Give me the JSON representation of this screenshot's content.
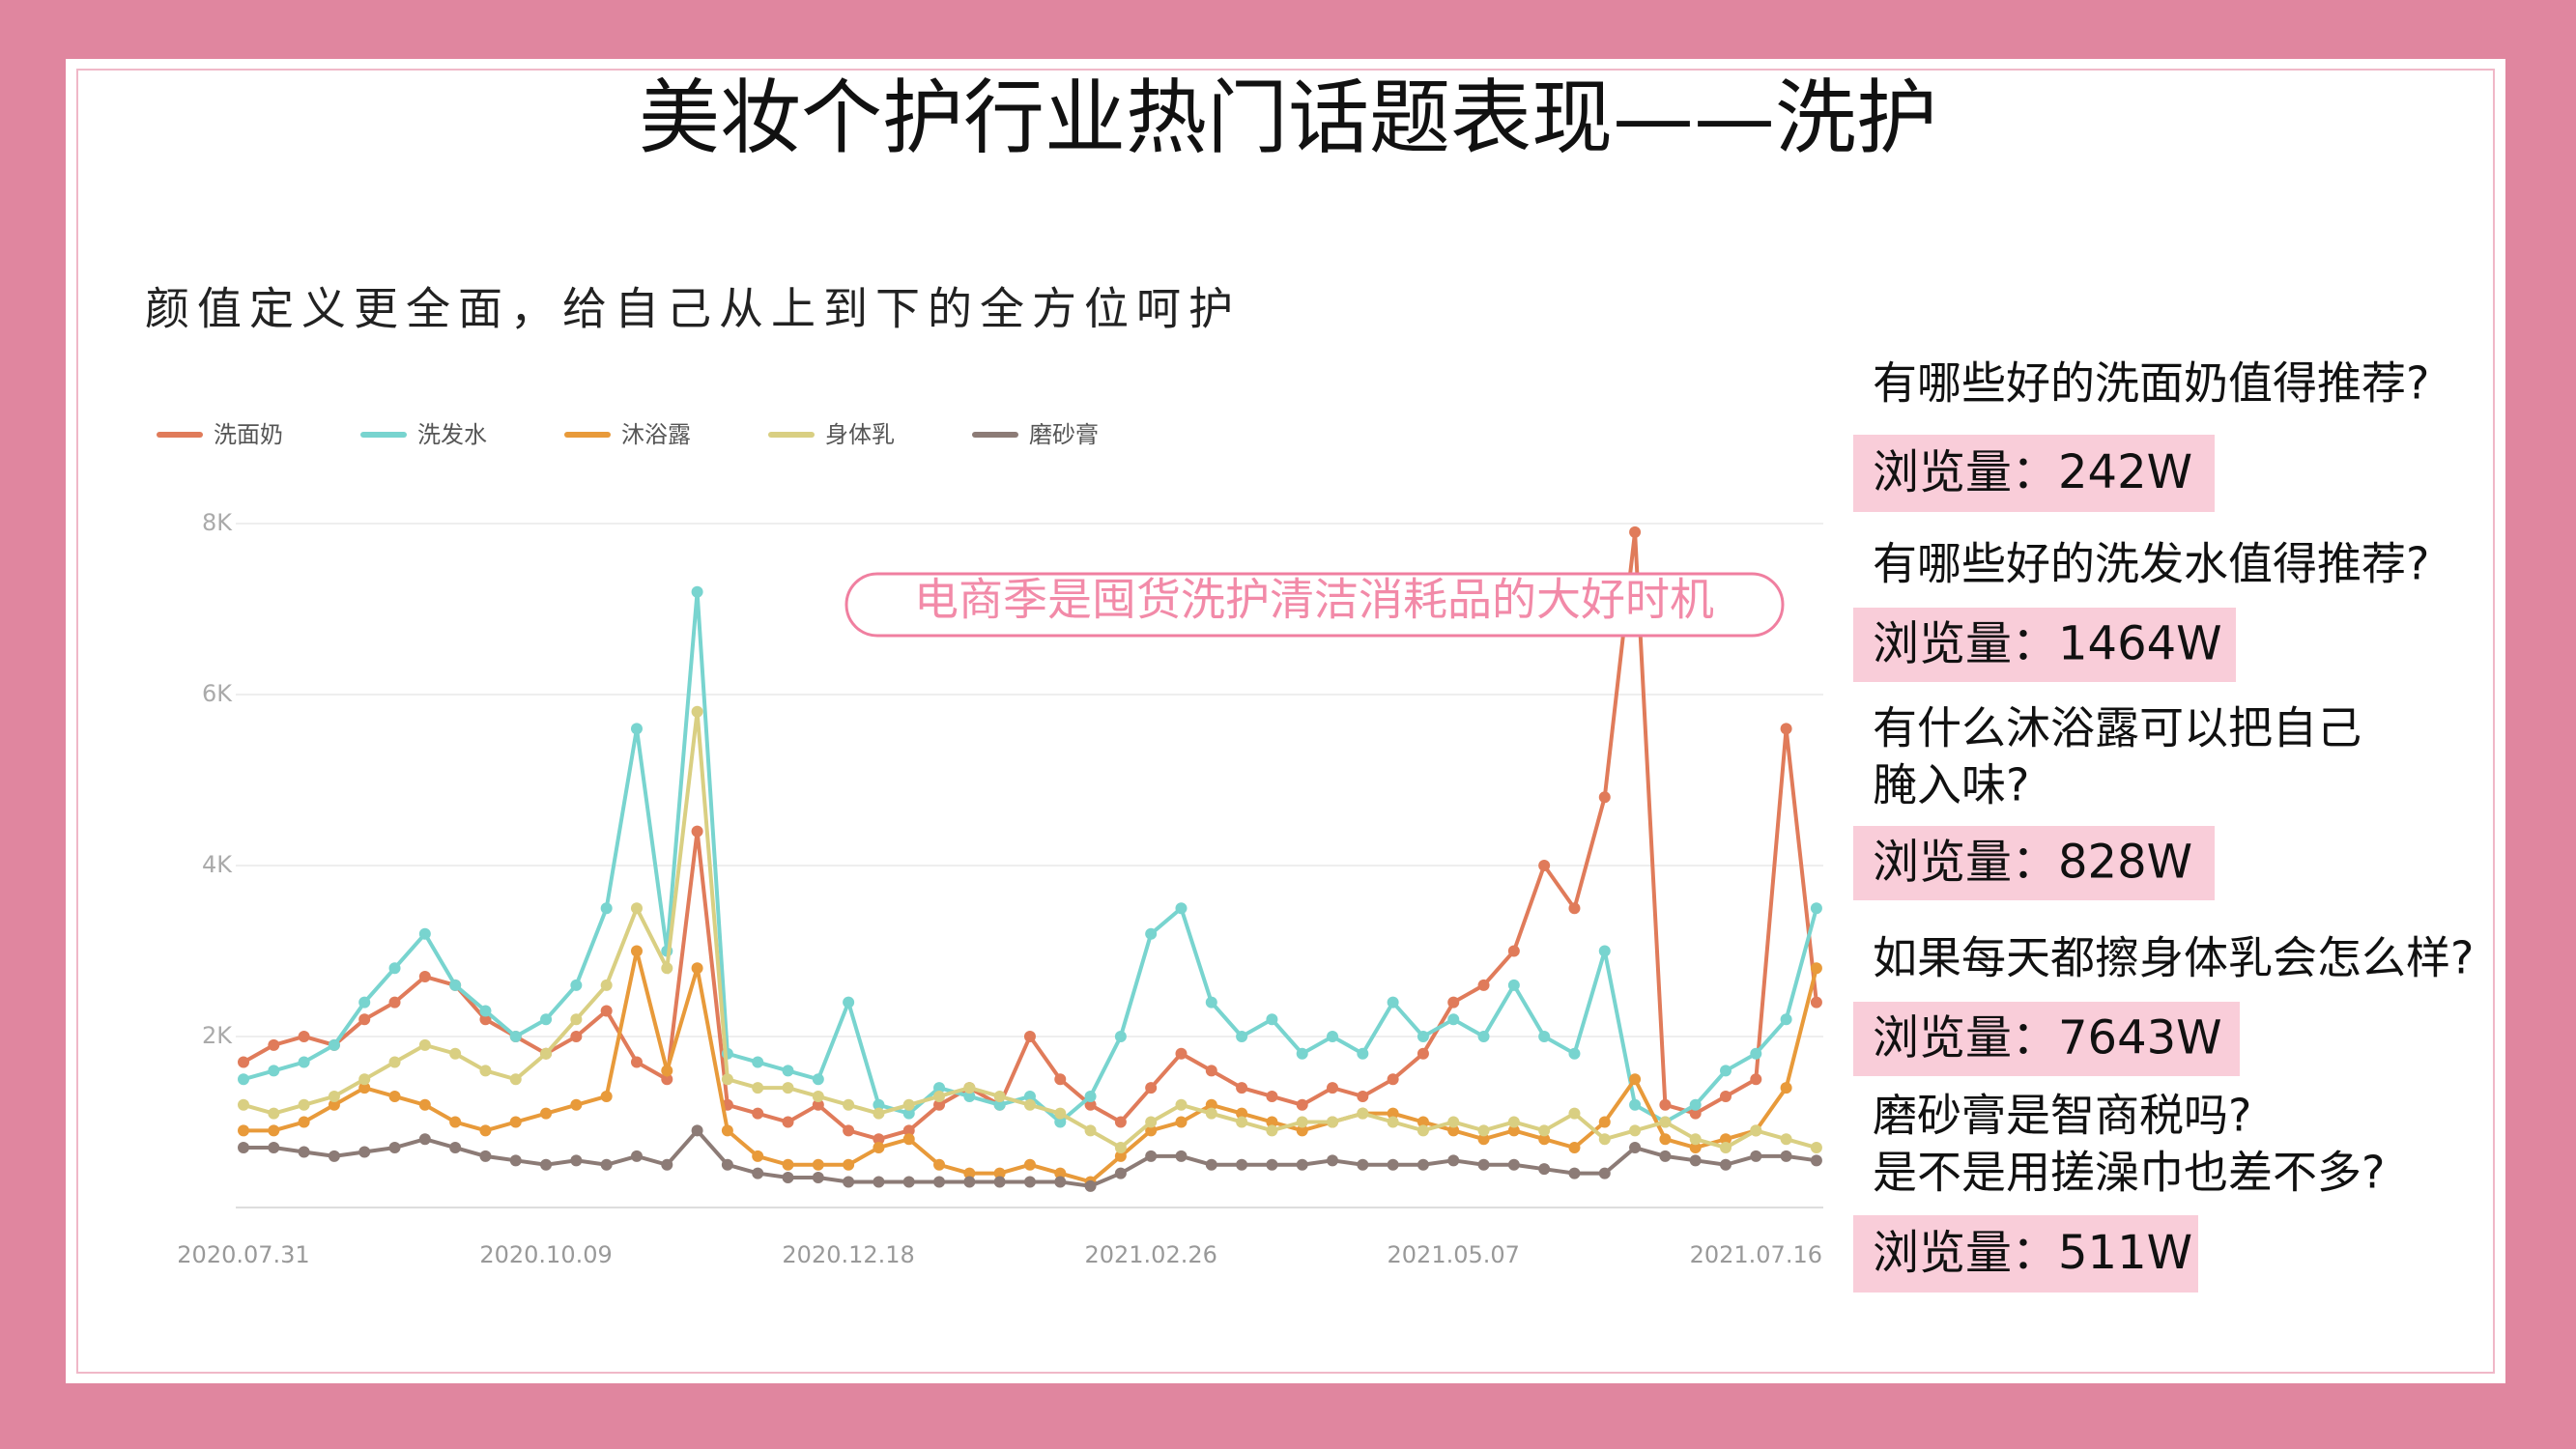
{
  "title": "美妆个护行业热门话题表现——洗护",
  "subtitle": "颜值定义更全面，给自己从上到下的全方位呵护",
  "questions": [
    {
      "lines": [
        "有哪些好的洗面奶值得推荐?"
      ],
      "views": "浏览量：242W"
    },
    {
      "lines": [
        "有哪些好的洗发水值得推荐?"
      ],
      "views": "浏览量：1464W"
    },
    {
      "lines": [
        "有什么沐浴露可以把自己",
        "腌入味?"
      ],
      "views": "浏览量：828W"
    },
    {
      "lines": [
        "如果每天都擦身体乳会怎么样?"
      ],
      "views": "浏览量：7643W"
    },
    {
      "lines": [
        "磨砂膏是智商税吗?",
        "是不是用搓澡巾也差不多?"
      ],
      "views": "浏览量：511W"
    }
  ],
  "chart_data": {
    "type": "line",
    "annotation": "电商季是囤货洗护清洁消耗品的大好时机",
    "categories": [
      "2020.07.31",
      null,
      null,
      null,
      null,
      null,
      null,
      null,
      null,
      null,
      "2020.10.09",
      null,
      null,
      null,
      null,
      null,
      null,
      null,
      null,
      null,
      "2020.12.18",
      null,
      null,
      null,
      null,
      null,
      null,
      null,
      null,
      null,
      "2021.02.26",
      null,
      null,
      null,
      null,
      null,
      null,
      null,
      null,
      null,
      "2021.05.07",
      null,
      null,
      null,
      null,
      null,
      null,
      null,
      null,
      null,
      "2021.07.16",
      null,
      null
    ],
    "series": [
      {
        "name": "洗面奶",
        "color": "#e07b5a",
        "values": [
          1700,
          1900,
          2000,
          1900,
          2200,
          2400,
          2700,
          2600,
          2200,
          2000,
          1800,
          2000,
          2300,
          1700,
          1500,
          4400,
          1200,
          1100,
          1000,
          1200,
          900,
          800,
          900,
          1200,
          1400,
          1200,
          2000,
          1500,
          1200,
          1000,
          1400,
          1800,
          1600,
          1400,
          1300,
          1200,
          1400,
          1300,
          1500,
          1800,
          2400,
          2600,
          3000,
          4000,
          3500,
          4800,
          7900,
          1200,
          1100,
          1300,
          1500,
          5600,
          2400
        ]
      },
      {
        "name": "洗发水",
        "color": "#78d4cf",
        "values": [
          1500,
          1600,
          1700,
          1900,
          2400,
          2800,
          3200,
          2600,
          2300,
          2000,
          2200,
          2600,
          3500,
          5600,
          3000,
          7200,
          1800,
          1700,
          1600,
          1500,
          2400,
          1200,
          1100,
          1400,
          1300,
          1200,
          1300,
          1000,
          1300,
          2000,
          3200,
          3500,
          2400,
          2000,
          2200,
          1800,
          2000,
          1800,
          2400,
          2000,
          2200,
          2000,
          2600,
          2000,
          1800,
          3000,
          1200,
          1000,
          1200,
          1600,
          1800,
          2200,
          3500
        ]
      },
      {
        "name": "沐浴露",
        "color": "#e89a3a",
        "values": [
          900,
          900,
          1000,
          1200,
          1400,
          1300,
          1200,
          1000,
          900,
          1000,
          1100,
          1200,
          1300,
          3000,
          1600,
          2800,
          900,
          600,
          500,
          500,
          500,
          700,
          800,
          500,
          400,
          400,
          500,
          400,
          300,
          600,
          900,
          1000,
          1200,
          1100,
          1000,
          900,
          1000,
          1100,
          1100,
          1000,
          900,
          800,
          900,
          800,
          700,
          1000,
          1500,
          800,
          700,
          800,
          900,
          1400,
          2800
        ]
      },
      {
        "name": "身体乳",
        "color": "#d9cf82",
        "values": [
          1200,
          1100,
          1200,
          1300,
          1500,
          1700,
          1900,
          1800,
          1600,
          1500,
          1800,
          2200,
          2600,
          3500,
          2800,
          5800,
          1500,
          1400,
          1400,
          1300,
          1200,
          1100,
          1200,
          1300,
          1400,
          1300,
          1200,
          1100,
          900,
          700,
          1000,
          1200,
          1100,
          1000,
          900,
          1000,
          1000,
          1100,
          1000,
          900,
          1000,
          900,
          1000,
          900,
          1100,
          800,
          900,
          1000,
          800,
          700,
          900,
          800,
          700
        ]
      },
      {
        "name": "磨砂膏",
        "color": "#8c7b76",
        "values": [
          700,
          700,
          650,
          600,
          650,
          700,
          800,
          700,
          600,
          550,
          500,
          550,
          500,
          600,
          500,
          900,
          500,
          400,
          350,
          350,
          300,
          300,
          300,
          300,
          300,
          300,
          300,
          300,
          250,
          400,
          600,
          600,
          500,
          500,
          500,
          500,
          550,
          500,
          500,
          500,
          550,
          500,
          500,
          450,
          400,
          400,
          700,
          600,
          550,
          500,
          600,
          600,
          550
        ]
      }
    ],
    "ylim": [
      0,
      8000
    ],
    "yticks": [
      {
        "value": 2000,
        "label": "2K"
      },
      {
        "value": 4000,
        "label": "4K"
      },
      {
        "value": 6000,
        "label": "6K"
      },
      {
        "value": 8000,
        "label": "8K"
      }
    ],
    "grid": true,
    "legend": "top"
  }
}
